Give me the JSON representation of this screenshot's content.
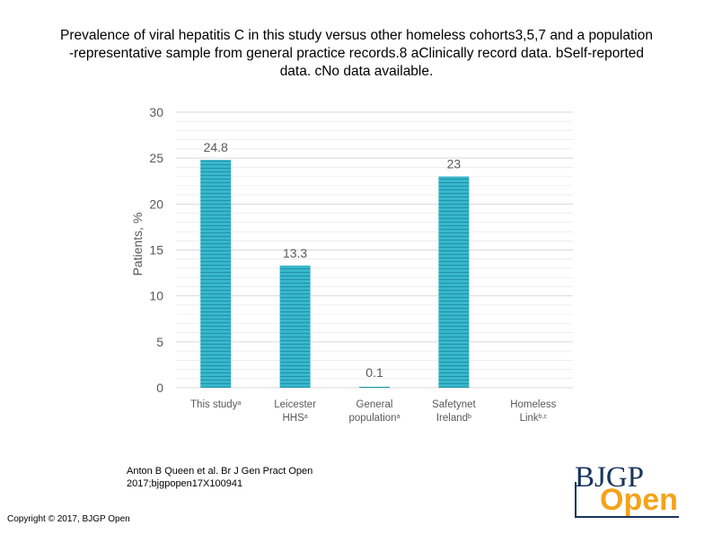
{
  "title_lines": [
    "Prevalence of viral hepatitis C in this study versus other homeless cohorts3,5,7 and a population",
    "-representative sample from general practice records.8 aClinically record data. bSelf-reported",
    "data. cNo data available."
  ],
  "citation_lines": [
    "Anton B Queen et al. Br J Gen Pract Open",
    "2017;bjgpopen17X100941"
  ],
  "copyright": "Copyright © 2017, BJGP Open",
  "logo": {
    "line1": "BJGP",
    "line2": "Open"
  },
  "colors": {
    "bar": "#38b7cc",
    "bar_stripe": "#1f93a8",
    "grid": "#d9d9d9",
    "text": "#595959",
    "logo_navy": "#17345c",
    "logo_orange": "#f5a21b"
  },
  "chart_data": {
    "type": "bar",
    "ylabel": "Patients, %",
    "ylim": [
      0,
      30
    ],
    "yticks": [
      0,
      5,
      10,
      15,
      20,
      25,
      30
    ],
    "grid": true,
    "categories": [
      {
        "line1": "This study",
        "line2": "",
        "sup": "a"
      },
      {
        "line1": "Leicester",
        "line2": "HHS",
        "sup": "a"
      },
      {
        "line1": "General",
        "line2": "population",
        "sup": "a"
      },
      {
        "line1": "Safetynet",
        "line2": "Ireland",
        "sup": "b"
      },
      {
        "line1": "Homeless",
        "line2": "Link",
        "sup": "b,c"
      }
    ],
    "values": [
      24.8,
      13.3,
      0.1,
      23,
      null
    ],
    "data_labels": [
      "24.8",
      "13.3",
      "0.1",
      "23",
      ""
    ]
  }
}
